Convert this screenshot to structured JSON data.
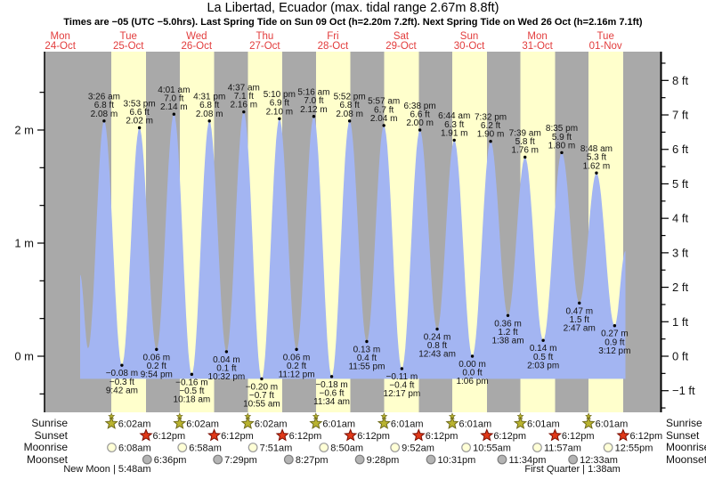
{
  "chart_data": {
    "type": "area",
    "title": "La Libertad, Ecuador (max. tidal range 2.67m 8.8ft)",
    "subtitle": "Times are −05 (UTC −5.0hrs). Last Spring Tide on Sun 09 Oct (h=2.20m 7.2ft). Next Spring Tide on Wed 26 Oct (h=2.16m 7.1ft)",
    "days": [
      {
        "name": "Mon",
        "date": "24-Oct"
      },
      {
        "name": "Tue",
        "date": "25-Oct"
      },
      {
        "name": "Wed",
        "date": "26-Oct"
      },
      {
        "name": "Thu",
        "date": "27-Oct"
      },
      {
        "name": "Fri",
        "date": "28-Oct"
      },
      {
        "name": "Sat",
        "date": "29-Oct"
      },
      {
        "name": "Sun",
        "date": "30-Oct"
      },
      {
        "name": "Mon",
        "date": "31-Oct"
      },
      {
        "name": "Tue",
        "date": "01-Nov"
      }
    ],
    "y_axis": {
      "left_ticks": [
        {
          "v": 0,
          "label": "0 m"
        },
        {
          "v": 1,
          "label": "1 m"
        },
        {
          "v": 2,
          "label": "2 m"
        }
      ],
      "right_ticks": [
        {
          "v": -1,
          "label": "−1 ft"
        },
        {
          "v": 0,
          "label": "0 ft"
        },
        {
          "v": 1,
          "label": "1 ft"
        },
        {
          "v": 2,
          "label": "2 ft"
        },
        {
          "v": 3,
          "label": "3 ft"
        },
        {
          "v": 4,
          "label": "4 ft"
        },
        {
          "v": 5,
          "label": "5 ft"
        },
        {
          "v": 6,
          "label": "6 ft"
        },
        {
          "v": 7,
          "label": "7 ft"
        },
        {
          "v": 8,
          "label": "8 ft"
        }
      ],
      "ylim_m": [
        -0.5,
        2.69
      ]
    },
    "tides": [
      {
        "t": 27.43,
        "v": 2.08,
        "kind": "high",
        "time": "3:26 am",
        "ft": "6.8 ft",
        "m": "2.08 m"
      },
      {
        "t": 33.7,
        "v": -0.08,
        "kind": "low",
        "time": "9:42 am",
        "ft": "−0.3 ft",
        "m": "−0.08 m"
      },
      {
        "t": 39.88,
        "v": 2.02,
        "kind": "high",
        "time": "3:53 pm",
        "ft": "6.6 ft",
        "m": "2.02 m"
      },
      {
        "t": 45.9,
        "v": 0.06,
        "kind": "low",
        "time": "9:54 pm",
        "ft": "0.2 ft",
        "m": "0.06 m"
      },
      {
        "t": 52.02,
        "v": 2.14,
        "kind": "high",
        "time": "4:01 am",
        "ft": "7.0 ft",
        "m": "2.14 m"
      },
      {
        "t": 58.3,
        "v": -0.16,
        "kind": "low",
        "time": "10:18 am",
        "ft": "−0.5 ft",
        "m": "−0.16 m"
      },
      {
        "t": 64.52,
        "v": 2.08,
        "kind": "high",
        "time": "4:31 pm",
        "ft": "6.8 ft",
        "m": "2.08 m"
      },
      {
        "t": 70.53,
        "v": 0.04,
        "kind": "low",
        "time": "10:32 pm",
        "ft": "0.1 ft",
        "m": "0.04 m"
      },
      {
        "t": 76.62,
        "v": 2.16,
        "kind": "high",
        "time": "4:37 am",
        "ft": "7.1 ft",
        "m": "2.16 m"
      },
      {
        "t": 82.92,
        "v": -0.2,
        "kind": "low",
        "time": "10:55 am",
        "ft": "−0.7 ft",
        "m": "−0.20 m"
      },
      {
        "t": 89.17,
        "v": 2.1,
        "kind": "high",
        "time": "5:10 pm",
        "ft": "6.9 ft",
        "m": "2.10 m"
      },
      {
        "t": 95.2,
        "v": 0.06,
        "kind": "low",
        "time": "11:12 pm",
        "ft": "0.2 ft",
        "m": "0.06 m"
      },
      {
        "t": 101.27,
        "v": 2.12,
        "kind": "high",
        "time": "5:16 am",
        "ft": "7.0 ft",
        "m": "2.12 m"
      },
      {
        "t": 107.57,
        "v": -0.18,
        "kind": "low",
        "time": "11:34 am",
        "ft": "−0.6 ft",
        "m": "−0.18 m"
      },
      {
        "t": 113.87,
        "v": 2.08,
        "kind": "high",
        "time": "5:52 pm",
        "ft": "6.8 ft",
        "m": "2.08 m"
      },
      {
        "t": 119.92,
        "v": 0.13,
        "kind": "low",
        "time": "11:55 pm",
        "ft": "0.4 ft",
        "m": "0.13 m"
      },
      {
        "t": 125.95,
        "v": 2.04,
        "kind": "high",
        "time": "5:57 am",
        "ft": "6.7 ft",
        "m": "2.04 m"
      },
      {
        "t": 132.28,
        "v": -0.11,
        "kind": "low",
        "time": "12:17 pm",
        "ft": "−0.4 ft",
        "m": "−0.11 m"
      },
      {
        "t": 138.63,
        "v": 2.0,
        "kind": "high",
        "time": "6:38 pm",
        "ft": "6.6 ft",
        "m": "2.00 m"
      },
      {
        "t": 144.72,
        "v": 0.24,
        "kind": "low",
        "time": "12:43 am",
        "ft": "0.8 ft",
        "m": "0.24 m"
      },
      {
        "t": 150.73,
        "v": 1.91,
        "kind": "high",
        "time": "6:44 am",
        "ft": "6.3 ft",
        "m": "1.91 m"
      },
      {
        "t": 157.1,
        "v": 0.0,
        "kind": "low",
        "time": "1:06 pm",
        "ft": "0.0 ft",
        "m": "0.00 m"
      },
      {
        "t": 163.53,
        "v": 1.9,
        "kind": "high",
        "time": "7:32 pm",
        "ft": "6.2 ft",
        "m": "1.90 m"
      },
      {
        "t": 169.63,
        "v": 0.36,
        "kind": "low",
        "time": "1:38 am",
        "ft": "1.2 ft",
        "m": "0.36 m"
      },
      {
        "t": 175.65,
        "v": 1.76,
        "kind": "high",
        "time": "7:39 am",
        "ft": "5.8 ft",
        "m": "1.76 m"
      },
      {
        "t": 182.05,
        "v": 0.14,
        "kind": "low",
        "time": "2:03 pm",
        "ft": "0.5 ft",
        "m": "0.14 m"
      },
      {
        "t": 188.58,
        "v": 1.8,
        "kind": "high",
        "time": "8:35 pm",
        "ft": "5.9 ft",
        "m": "1.80 m"
      },
      {
        "t": 194.78,
        "v": 0.47,
        "kind": "low",
        "time": "2:47 am",
        "ft": "1.5 ft",
        "m": "0.47 m"
      },
      {
        "t": 200.8,
        "v": 1.62,
        "kind": "high",
        "time": "8:48 am",
        "ft": "5.3 ft",
        "m": "1.62 m"
      },
      {
        "t": 207.2,
        "v": 0.27,
        "kind": "low",
        "time": "3:12 pm",
        "ft": "0.9 ft",
        "m": "0.27 m"
      }
    ],
    "curve_edges": {
      "start": {
        "t": 19.0,
        "v": 0.72
      },
      "pre_low": {
        "t": 21.8,
        "v": 0.07
      },
      "end": {
        "t": 211.0,
        "v": 0.93
      }
    },
    "sun_moon": {
      "rows": [
        {
          "label": "Sunrise",
          "icon": "sunrise-star-icon",
          "entries": [
            {
              "t": 30.03,
              "time": "6:02am"
            },
            {
              "t": 54.03,
              "time": "6:02am"
            },
            {
              "t": 78.03,
              "time": "6:02am"
            },
            {
              "t": 102.02,
              "time": "6:01am"
            },
            {
              "t": 126.02,
              "time": "6:01am"
            },
            {
              "t": 150.02,
              "time": "6:01am"
            },
            {
              "t": 174.02,
              "time": "6:01am"
            },
            {
              "t": 198.02,
              "time": "6:01am"
            }
          ]
        },
        {
          "label": "Sunset",
          "icon": "sunset-star-icon",
          "entries": [
            {
              "t": 42.2,
              "time": "6:12pm"
            },
            {
              "t": 66.2,
              "time": "6:12pm"
            },
            {
              "t": 90.2,
              "time": "6:12pm"
            },
            {
              "t": 114.2,
              "time": "6:12pm"
            },
            {
              "t": 138.2,
              "time": "6:12pm"
            },
            {
              "t": 162.2,
              "time": "6:12pm"
            },
            {
              "t": 186.2,
              "time": "6:12pm"
            },
            {
              "t": 210.2,
              "time": "6:12pm"
            }
          ]
        },
        {
          "label": "Moonrise",
          "icon": "moonrise-circle-icon",
          "entries": [
            {
              "t": 30.13,
              "time": "6:08am"
            },
            {
              "t": 54.97,
              "time": "6:58am"
            },
            {
              "t": 79.85,
              "time": "7:51am"
            },
            {
              "t": 104.83,
              "time": "8:50am"
            },
            {
              "t": 129.87,
              "time": "9:52am"
            },
            {
              "t": 154.92,
              "time": "10:55am"
            },
            {
              "t": 179.95,
              "time": "11:57am"
            },
            {
              "t": 204.92,
              "time": "12:55pm"
            }
          ]
        },
        {
          "label": "Moonset",
          "icon": "moonset-circle-icon",
          "entries": [
            {
              "t": 42.6,
              "time": "6:36pm"
            },
            {
              "t": 67.48,
              "time": "7:29pm"
            },
            {
              "t": 92.45,
              "time": "8:27pm"
            },
            {
              "t": 117.47,
              "time": "9:28pm"
            },
            {
              "t": 142.52,
              "time": "10:31pm"
            },
            {
              "t": 167.57,
              "time": "11:34pm"
            },
            {
              "t": 192.55,
              "time": "12:33am"
            }
          ]
        }
      ],
      "phases": [
        {
          "text": "New Moon | 5:48am",
          "t": 29.8
        },
        {
          "text": "First Quarter | 1:38am",
          "t": 193.63
        }
      ]
    }
  },
  "colors": {
    "band_day": "#ffffcc",
    "band_night": "#a9a9a9",
    "tide_fill": "#a3b5f2",
    "day_label": "#e23c3c",
    "text": "#141414",
    "axis": "#000000",
    "sunrise_star": "#b9b32f",
    "sunrise_star_stroke": "#6e6a1c",
    "sunset_star": "#e03818",
    "sunset_star_stroke": "#7a1005",
    "moonrise_fill": "#ffffd6",
    "moonrise_stroke": "#999999",
    "moonset_fill": "#b4b4b4",
    "moonset_stroke": "#7d7d7d"
  }
}
